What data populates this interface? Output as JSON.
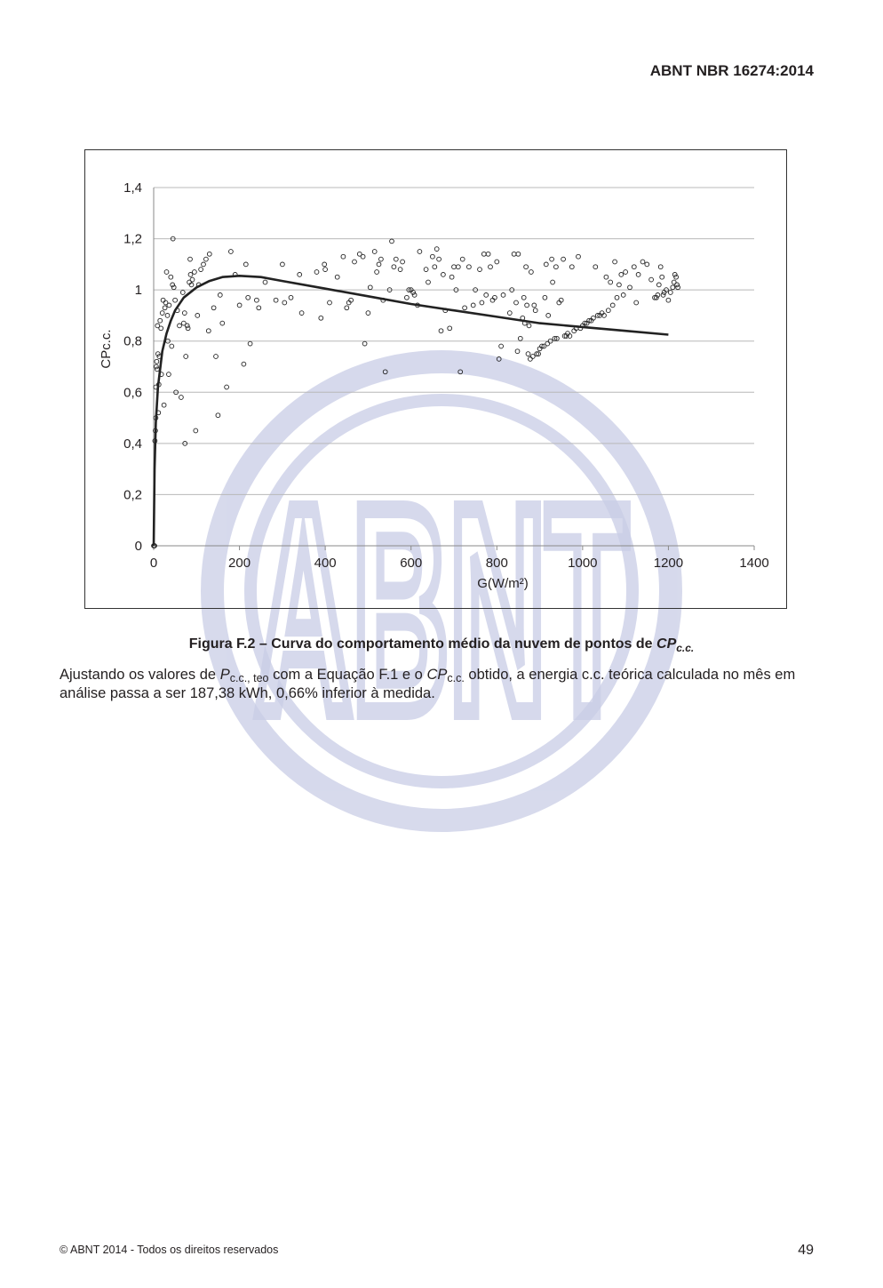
{
  "header": {
    "doc_id": "ABNT NBR 16274:2014"
  },
  "watermark": {
    "text": "ABNT"
  },
  "chart_data": {
    "type": "scatter",
    "xlabel": "G(W/m²)",
    "ylabel": "CPc.c.",
    "xlim": [
      0,
      1400
    ],
    "ylim": [
      0,
      1.4
    ],
    "grid": "horizontal",
    "xticks": [
      "0",
      "200",
      "400",
      "600",
      "800",
      "1000",
      "1200",
      "1400"
    ],
    "yticks": [
      "0",
      "0,2",
      "0,4",
      "0,6",
      "0,8",
      "1",
      "1,2",
      "1,4"
    ],
    "series": [
      {
        "kind": "scatter",
        "marker": "open-circle",
        "points": [
          [
            0,
            0
          ],
          [
            1,
            0
          ],
          [
            2,
            0
          ],
          [
            3,
            0.41
          ],
          [
            4,
            0.45
          ],
          [
            5,
            0.5
          ],
          [
            5,
            0.62
          ],
          [
            6,
            0.7
          ],
          [
            7,
            0.72
          ],
          [
            8,
            0.69
          ],
          [
            9,
            0.86
          ],
          [
            10,
            0.75
          ],
          [
            11,
            0.52
          ],
          [
            12,
            0.63
          ],
          [
            13,
            0.74
          ],
          [
            15,
            0.88
          ],
          [
            17,
            0.85
          ],
          [
            18,
            0.67
          ],
          [
            20,
            0.91
          ],
          [
            22,
            0.96
          ],
          [
            24,
            0.55
          ],
          [
            26,
            0.93
          ],
          [
            28,
            0.95
          ],
          [
            30,
            1.07
          ],
          [
            32,
            0.9
          ],
          [
            33,
            0.8
          ],
          [
            35,
            0.67
          ],
          [
            36,
            0.94
          ],
          [
            40,
            1.05
          ],
          [
            42,
            0.78
          ],
          [
            44,
            1.02
          ],
          [
            45,
            1.2
          ],
          [
            47,
            1.01
          ],
          [
            50,
            0.96
          ],
          [
            52,
            0.6
          ],
          [
            55,
            0.92
          ],
          [
            60,
            0.86
          ],
          [
            64,
            0.58
          ],
          [
            68,
            0.99
          ],
          [
            70,
            0.87
          ],
          [
            72,
            0.91
          ],
          [
            73,
            0.4
          ],
          [
            75,
            0.74
          ],
          [
            78,
            0.86
          ],
          [
            80,
            0.85
          ],
          [
            83,
            1.03
          ],
          [
            85,
            1.12
          ],
          [
            86,
            1.06
          ],
          [
            88,
            1.02
          ],
          [
            90,
            1.04
          ],
          [
            95,
            1.07
          ],
          [
            98,
            0.45
          ],
          [
            102,
            0.9
          ],
          [
            105,
            1.02
          ],
          [
            110,
            1.08
          ],
          [
            116,
            1.1
          ],
          [
            122,
            1.12
          ],
          [
            128,
            0.84
          ],
          [
            130,
            1.14
          ],
          [
            140,
            0.93
          ],
          [
            145,
            0.74
          ],
          [
            150,
            0.51
          ],
          [
            155,
            0.98
          ],
          [
            160,
            0.87
          ],
          [
            170,
            0.62
          ],
          [
            180,
            1.15
          ],
          [
            190,
            1.06
          ],
          [
            200,
            0.94
          ],
          [
            210,
            0.71
          ],
          [
            215,
            1.1
          ],
          [
            220,
            0.97
          ],
          [
            225,
            0.79
          ],
          [
            240,
            0.96
          ],
          [
            245,
            0.93
          ],
          [
            260,
            1.03
          ],
          [
            285,
            0.96
          ],
          [
            300,
            1.1
          ],
          [
            305,
            0.95
          ],
          [
            320,
            0.97
          ],
          [
            340,
            1.06
          ],
          [
            345,
            0.91
          ],
          [
            380,
            1.07
          ],
          [
            390,
            0.89
          ],
          [
            398,
            1.1
          ],
          [
            400,
            1.08
          ],
          [
            410,
            0.95
          ],
          [
            428,
            1.05
          ],
          [
            442,
            1.13
          ],
          [
            450,
            0.93
          ],
          [
            455,
            0.95
          ],
          [
            460,
            0.96
          ],
          [
            468,
            1.11
          ],
          [
            480,
            1.14
          ],
          [
            488,
            1.13
          ],
          [
            492,
            0.79
          ],
          [
            500,
            0.91
          ],
          [
            505,
            1.01
          ],
          [
            515,
            1.15
          ],
          [
            520,
            1.07
          ],
          [
            525,
            1.1
          ],
          [
            530,
            1.12
          ],
          [
            535,
            0.96
          ],
          [
            540,
            0.68
          ],
          [
            550,
            1.0
          ],
          [
            555,
            1.19
          ],
          [
            560,
            1.09
          ],
          [
            565,
            1.12
          ],
          [
            575,
            1.08
          ],
          [
            580,
            1.11
          ],
          [
            590,
            0.97
          ],
          [
            595,
            1.0
          ],
          [
            600,
            1.0
          ],
          [
            605,
            0.99
          ],
          [
            608,
            0.98
          ],
          [
            615,
            0.94
          ],
          [
            620,
            1.15
          ],
          [
            635,
            1.08
          ],
          [
            640,
            1.03
          ],
          [
            650,
            1.13
          ],
          [
            655,
            1.09
          ],
          [
            660,
            1.16
          ],
          [
            665,
            1.12
          ],
          [
            670,
            0.84
          ],
          [
            675,
            1.06
          ],
          [
            680,
            0.92
          ],
          [
            690,
            0.85
          ],
          [
            695,
            1.05
          ],
          [
            700,
            1.09
          ],
          [
            705,
            1.0
          ],
          [
            710,
            1.09
          ],
          [
            715,
            0.68
          ],
          [
            720,
            1.12
          ],
          [
            725,
            0.93
          ],
          [
            735,
            1.09
          ],
          [
            745,
            0.94
          ],
          [
            750,
            1.0
          ],
          [
            760,
            1.08
          ],
          [
            765,
            0.95
          ],
          [
            770,
            1.14
          ],
          [
            775,
            0.98
          ],
          [
            780,
            1.14
          ],
          [
            785,
            1.09
          ],
          [
            790,
            0.96
          ],
          [
            795,
            0.97
          ],
          [
            800,
            1.11
          ],
          [
            805,
            0.73
          ],
          [
            810,
            0.78
          ],
          [
            815,
            0.98
          ],
          [
            830,
            0.91
          ],
          [
            835,
            1.0
          ],
          [
            840,
            1.14
          ],
          [
            845,
            0.95
          ],
          [
            848,
            0.76
          ],
          [
            850,
            1.14
          ],
          [
            855,
            0.81
          ],
          [
            860,
            0.89
          ],
          [
            863,
            0.97
          ],
          [
            865,
            0.87
          ],
          [
            868,
            1.09
          ],
          [
            870,
            0.94
          ],
          [
            873,
            0.75
          ],
          [
            875,
            0.86
          ],
          [
            878,
            0.73
          ],
          [
            880,
            1.07
          ],
          [
            884,
            0.74
          ],
          [
            887,
            0.94
          ],
          [
            890,
            0.92
          ],
          [
            893,
            0.75
          ],
          [
            897,
            0.75
          ],
          [
            900,
            0.77
          ],
          [
            905,
            0.78
          ],
          [
            910,
            0.78
          ],
          [
            912,
            0.97
          ],
          [
            915,
            1.1
          ],
          [
            918,
            0.79
          ],
          [
            920,
            0.9
          ],
          [
            925,
            0.8
          ],
          [
            928,
            1.12
          ],
          [
            930,
            1.03
          ],
          [
            935,
            0.81
          ],
          [
            938,
            1.09
          ],
          [
            940,
            0.81
          ],
          [
            945,
            0.95
          ],
          [
            950,
            0.96
          ],
          [
            955,
            1.12
          ],
          [
            958,
            0.82
          ],
          [
            962,
            0.82
          ],
          [
            965,
            0.83
          ],
          [
            970,
            0.82
          ],
          [
            975,
            1.09
          ],
          [
            980,
            0.84
          ],
          [
            985,
            0.85
          ],
          [
            990,
            1.13
          ],
          [
            995,
            0.85
          ],
          [
            1000,
            0.86
          ],
          [
            1005,
            0.87
          ],
          [
            1010,
            0.87
          ],
          [
            1015,
            0.88
          ],
          [
            1020,
            0.88
          ],
          [
            1025,
            0.89
          ],
          [
            1030,
            1.09
          ],
          [
            1035,
            0.9
          ],
          [
            1040,
            0.9
          ],
          [
            1045,
            0.91
          ],
          [
            1050,
            0.9
          ],
          [
            1055,
            1.05
          ],
          [
            1060,
            0.92
          ],
          [
            1065,
            1.03
          ],
          [
            1070,
            0.94
          ],
          [
            1075,
            1.11
          ],
          [
            1080,
            0.97
          ],
          [
            1085,
            1.02
          ],
          [
            1090,
            1.06
          ],
          [
            1095,
            0.98
          ],
          [
            1100,
            1.07
          ],
          [
            1110,
            1.01
          ],
          [
            1120,
            1.09
          ],
          [
            1125,
            0.95
          ],
          [
            1130,
            1.06
          ],
          [
            1140,
            1.11
          ],
          [
            1150,
            1.1
          ],
          [
            1160,
            1.04
          ],
          [
            1168,
            0.97
          ],
          [
            1172,
            0.97
          ],
          [
            1175,
            0.98
          ],
          [
            1178,
            1.02
          ],
          [
            1182,
            1.09
          ],
          [
            1185,
            1.05
          ],
          [
            1188,
            0.98
          ],
          [
            1190,
            0.99
          ],
          [
            1195,
            1.0
          ],
          [
            1200,
            0.96
          ],
          [
            1205,
            0.99
          ],
          [
            1210,
            1.01
          ],
          [
            1213,
            1.03
          ],
          [
            1215,
            1.06
          ],
          [
            1218,
            1.05
          ],
          [
            1220,
            1.02
          ],
          [
            1222,
            1.01
          ]
        ]
      },
      {
        "kind": "line",
        "points": [
          [
            0,
            0
          ],
          [
            2,
            0.3
          ],
          [
            5,
            0.48
          ],
          [
            10,
            0.62
          ],
          [
            20,
            0.76
          ],
          [
            30,
            0.83
          ],
          [
            40,
            0.88
          ],
          [
            50,
            0.92
          ],
          [
            70,
            0.97
          ],
          [
            100,
            1.01
          ],
          [
            130,
            1.035
          ],
          [
            160,
            1.05
          ],
          [
            200,
            1.055
          ],
          [
            250,
            1.05
          ],
          [
            300,
            1.035
          ],
          [
            400,
            1.005
          ],
          [
            500,
            0.975
          ],
          [
            600,
            0.945
          ],
          [
            700,
            0.92
          ],
          [
            800,
            0.895
          ],
          [
            900,
            0.87
          ],
          [
            1000,
            0.855
          ],
          [
            1100,
            0.84
          ],
          [
            1200,
            0.825
          ]
        ]
      }
    ]
  },
  "caption": {
    "prefix": "Figura F.2 – Curva do comportamento médio da nuvem de pontos de ",
    "cp": "CP",
    "cp_sub": "c.c."
  },
  "paragraph": {
    "part1": "Ajustando os valores de ",
    "p": "P",
    "p_sub": "c.c., teo",
    "part2": " com a Equação F.1 e o ",
    "cp": "CP",
    "cp_sub": "c.c.",
    "part3": " obtido, a energia c.c. teórica calculada no mês em análise passa a ser 187,38 kWh, 0,66% inferior à medida."
  },
  "footer": {
    "copyright": "© ABNT 2014 - Todos os direitos reservados",
    "page_number": "49"
  }
}
